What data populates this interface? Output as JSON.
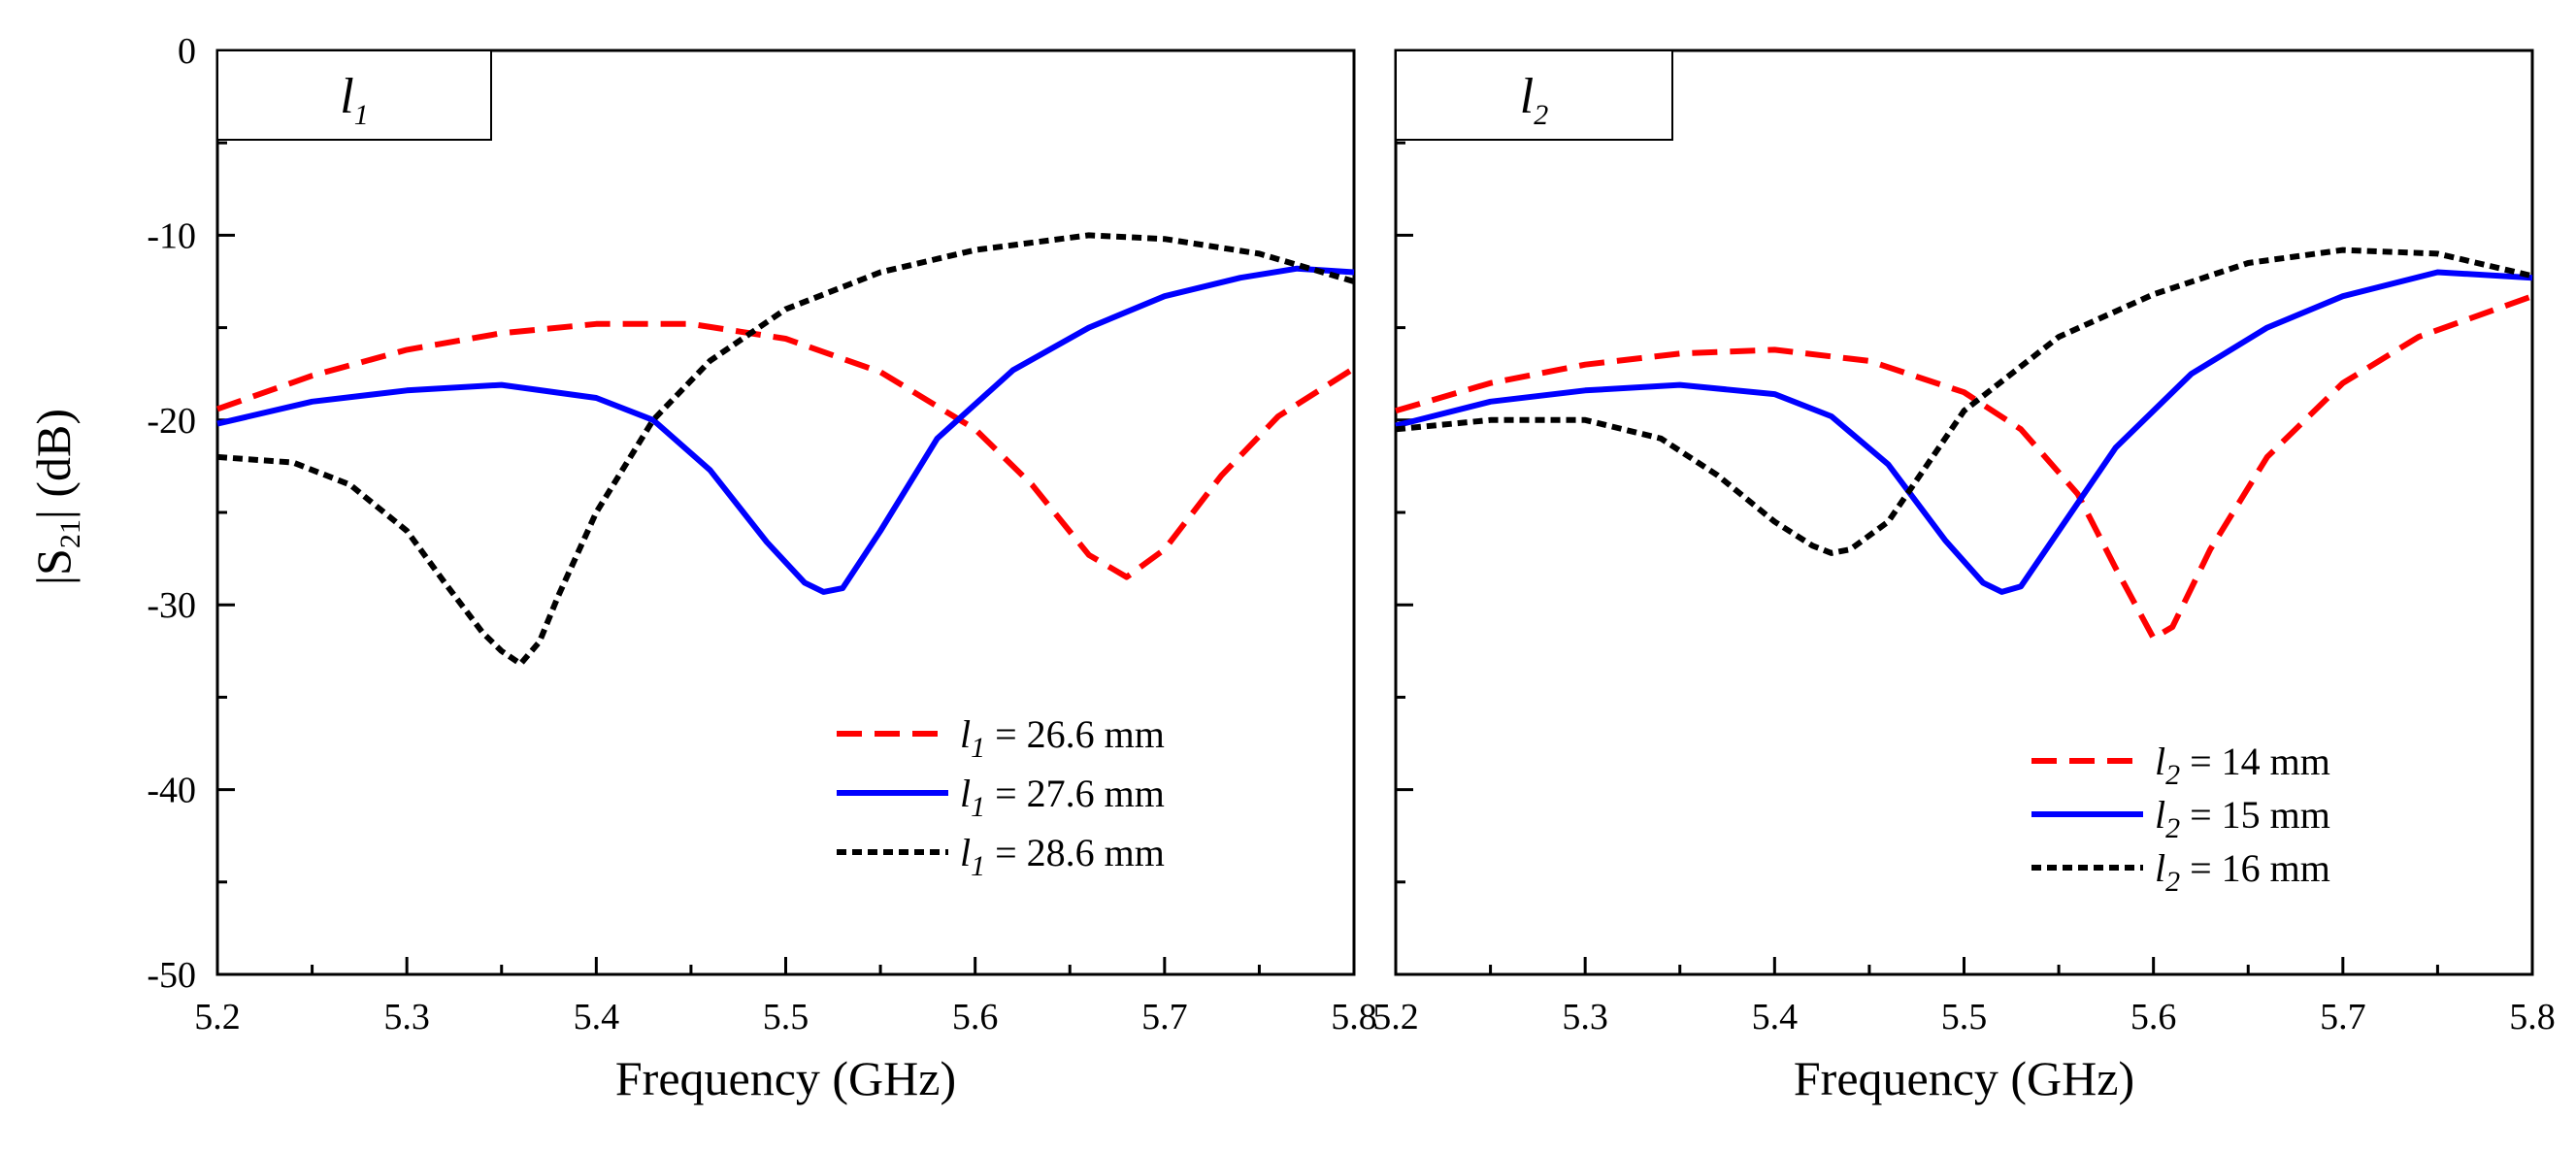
{
  "y_axis_label": "|S21| (dB)",
  "chart_data": [
    {
      "type": "line",
      "panel_tag": "l1",
      "xlabel": "Frequency (GHz)",
      "ylabel": "|S21| (dB)",
      "xlim": [
        5.2,
        5.8
      ],
      "ylim": [
        -50,
        0
      ],
      "xticks": [
        5.2,
        5.3,
        5.4,
        5.5,
        5.6,
        5.7,
        5.8
      ],
      "yticks": [
        0,
        -10,
        -20,
        -30,
        -40,
        -50
      ],
      "grid": false,
      "legend_position": "bottom-right",
      "series": [
        {
          "name": "l1 = 26.6 mm",
          "var": "l1",
          "value": "= 26.6 mm",
          "color": "#ff0000",
          "style": "dashed",
          "x": [
            5.2,
            5.25,
            5.3,
            5.35,
            5.4,
            5.45,
            5.5,
            5.55,
            5.6,
            5.63,
            5.66,
            5.68,
            5.7,
            5.73,
            5.76,
            5.8
          ],
          "y": [
            -19.4,
            -17.6,
            -16.2,
            -15.3,
            -14.8,
            -14.8,
            -15.6,
            -17.4,
            -20.5,
            -23.5,
            -27.3,
            -28.5,
            -27.0,
            -23.0,
            -19.8,
            -17.2
          ]
        },
        {
          "name": "l1 = 27.6 mm",
          "var": "l1",
          "value": "= 27.6 mm",
          "color": "#0000ff",
          "style": "solid",
          "x": [
            5.2,
            5.25,
            5.3,
            5.35,
            5.4,
            5.43,
            5.46,
            5.49,
            5.51,
            5.52,
            5.53,
            5.55,
            5.58,
            5.62,
            5.66,
            5.7,
            5.74,
            5.77,
            5.8
          ],
          "y": [
            -20.2,
            -19.0,
            -18.4,
            -18.1,
            -18.8,
            -20.0,
            -22.7,
            -26.6,
            -28.8,
            -29.3,
            -29.1,
            -26.0,
            -21.0,
            -17.3,
            -15.0,
            -13.3,
            -12.3,
            -11.8,
            -12.0
          ]
        },
        {
          "name": "l1 = 28.6 mm",
          "var": "l1",
          "value": "= 28.6 mm",
          "color": "#000000",
          "style": "dotted",
          "x": [
            5.2,
            5.24,
            5.27,
            5.3,
            5.32,
            5.34,
            5.35,
            5.36,
            5.37,
            5.38,
            5.4,
            5.43,
            5.46,
            5.5,
            5.55,
            5.6,
            5.66,
            5.7,
            5.75,
            5.8
          ],
          "y": [
            -22.0,
            -22.3,
            -23.5,
            -26.0,
            -28.8,
            -31.5,
            -32.5,
            -33.2,
            -32.0,
            -29.5,
            -25.0,
            -20.0,
            -16.8,
            -14.0,
            -12.0,
            -10.8,
            -10.0,
            -10.2,
            -11.0,
            -12.5
          ]
        }
      ]
    },
    {
      "type": "line",
      "panel_tag": "l2",
      "xlabel": "Frequency (GHz)",
      "ylabel": "",
      "xlim": [
        5.2,
        5.8
      ],
      "ylim": [
        -50,
        0
      ],
      "xticks": [
        5.2,
        5.3,
        5.4,
        5.5,
        5.6,
        5.7,
        5.8
      ],
      "yticks": [
        0,
        -10,
        -20,
        -30,
        -40,
        -50
      ],
      "grid": false,
      "legend_position": "bottom-right",
      "series": [
        {
          "name": "l2 = 14 mm",
          "var": "l2",
          "value": "= 14 mm",
          "color": "#ff0000",
          "style": "dashed",
          "x": [
            5.2,
            5.25,
            5.3,
            5.35,
            5.4,
            5.45,
            5.5,
            5.53,
            5.56,
            5.58,
            5.6,
            5.61,
            5.63,
            5.66,
            5.7,
            5.74,
            5.8
          ],
          "y": [
            -19.5,
            -18.0,
            -17.0,
            -16.4,
            -16.2,
            -16.8,
            -18.5,
            -20.5,
            -24.0,
            -28.0,
            -31.8,
            -31.2,
            -27.0,
            -22.0,
            -18.0,
            -15.5,
            -13.3
          ]
        },
        {
          "name": "l2 = 15 mm",
          "var": "l2",
          "value": "= 15 mm",
          "color": "#0000ff",
          "style": "solid",
          "x": [
            5.2,
            5.25,
            5.3,
            5.35,
            5.4,
            5.43,
            5.46,
            5.49,
            5.51,
            5.52,
            5.53,
            5.55,
            5.58,
            5.62,
            5.66,
            5.7,
            5.75,
            5.8
          ],
          "y": [
            -20.3,
            -19.0,
            -18.4,
            -18.1,
            -18.6,
            -19.8,
            -22.4,
            -26.5,
            -28.8,
            -29.3,
            -29.0,
            -26.0,
            -21.5,
            -17.5,
            -15.0,
            -13.3,
            -12.0,
            -12.3
          ]
        },
        {
          "name": "l2 = 16 mm",
          "var": "l2",
          "value": "= 16 mm",
          "color": "#000000",
          "style": "dotted",
          "x": [
            5.2,
            5.25,
            5.3,
            5.34,
            5.37,
            5.4,
            5.42,
            5.43,
            5.44,
            5.46,
            5.48,
            5.5,
            5.55,
            5.6,
            5.65,
            5.7,
            5.75,
            5.8
          ],
          "y": [
            -20.5,
            -20.0,
            -20.0,
            -21.0,
            -23.0,
            -25.5,
            -26.8,
            -27.2,
            -27.0,
            -25.5,
            -22.5,
            -19.5,
            -15.5,
            -13.2,
            -11.5,
            -10.8,
            -11.0,
            -12.2
          ]
        }
      ]
    }
  ]
}
